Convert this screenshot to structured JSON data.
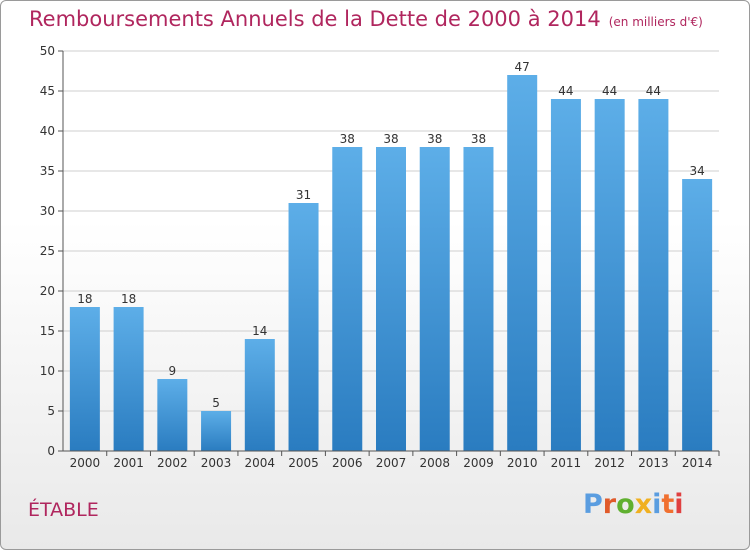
{
  "chart_data": {
    "type": "bar",
    "title": "Remboursements Annuels de la Dette de 2000 à 2014",
    "subtitle": "(en milliers d'€)",
    "categories": [
      "2000",
      "2001",
      "2002",
      "2003",
      "2004",
      "2005",
      "2006",
      "2007",
      "2008",
      "2009",
      "2010",
      "2011",
      "2012",
      "2013",
      "2014"
    ],
    "values": [
      18,
      18,
      9,
      5,
      14,
      31,
      38,
      38,
      38,
      38,
      47,
      44,
      44,
      44,
      34
    ],
    "ylim": [
      0,
      50
    ],
    "yticks": [
      0,
      5,
      10,
      15,
      20,
      25,
      30,
      35,
      40,
      45,
      50
    ],
    "grid": true,
    "colors": {
      "bar_top": "#5daee8",
      "bar_bottom": "#2a7cc0",
      "text": "#b0265e"
    }
  },
  "commune": "ÉTABLE",
  "logo": {
    "text": "Proxiti",
    "colors": [
      "#5a9de0",
      "#e05a2a",
      "#60b030",
      "#f0b020",
      "#5a9de0",
      "#f07030",
      "#e04040"
    ]
  }
}
